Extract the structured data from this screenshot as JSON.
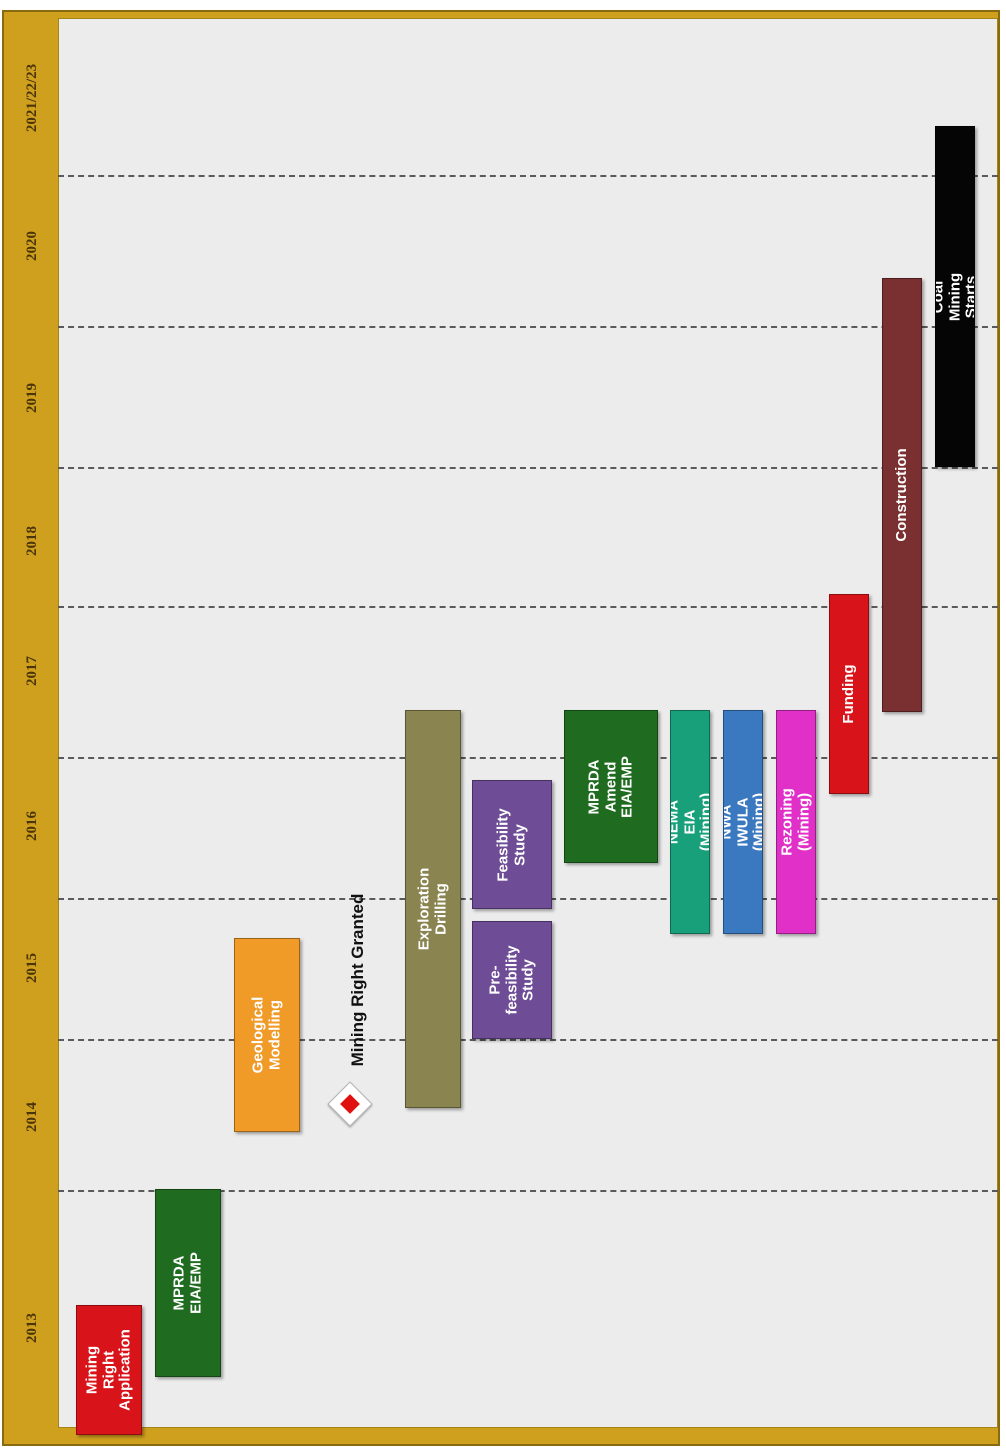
{
  "timeline": {
    "years": [
      "2013",
      "2014",
      "2015",
      "2016",
      "2017",
      "2018",
      "2019",
      "2020",
      "2021/22/23"
    ],
    "milestone": {
      "label": "Mining  Right  Granted",
      "icon": "diamond-icon"
    },
    "tasks": [
      {
        "label": "Mining Right\nApplication",
        "color": "#d8131a"
      },
      {
        "label": "MPRDA\nEIA/EMP",
        "color": "#1f6b1f"
      },
      {
        "label": "Geological\nModelling",
        "color": "#f09a28"
      },
      {
        "label": "Exploration Drilling",
        "color": "#8a8450"
      },
      {
        "label": "Pre-\nfeasibility\nStudy",
        "color": "#6e4c96"
      },
      {
        "label": "Feasibility\nStudy",
        "color": "#6e4c96"
      },
      {
        "label": "MPRDA\nAmend\nEIA/EMP",
        "color": "#1f6b1f"
      },
      {
        "label": "NEMA EIA (Mining)",
        "color": "#17a07a"
      },
      {
        "label": "NWA IWULA  (Mining)",
        "color": "#3a78c0"
      },
      {
        "label": "Rezoning  (Mining)",
        "color": "#e030c8"
      },
      {
        "label": "Funding",
        "color": "#d8131a"
      },
      {
        "label": "Construction",
        "color": "#7a3030"
      },
      {
        "label": "Coal Mining Starts",
        "color": "#050505"
      }
    ]
  }
}
